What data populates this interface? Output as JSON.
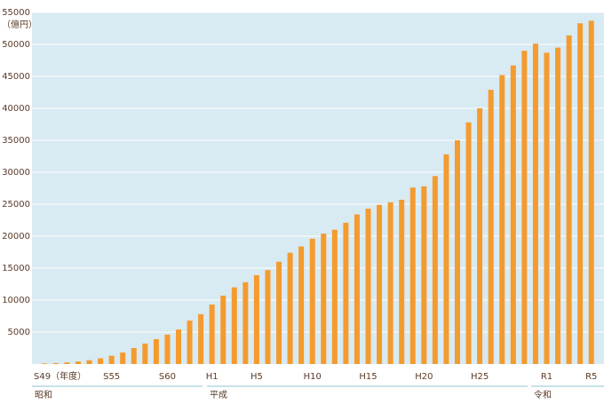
{
  "chart_data": {
    "type": "bar",
    "unit_label": "（億円）",
    "categories": [
      "S49（年度）",
      null,
      null,
      null,
      null,
      null,
      "S55",
      null,
      null,
      null,
      null,
      "S60",
      null,
      null,
      null,
      "H1",
      null,
      null,
      null,
      "H5",
      null,
      null,
      null,
      null,
      "H10",
      null,
      null,
      null,
      null,
      "H15",
      null,
      null,
      null,
      null,
      "H20",
      null,
      null,
      null,
      null,
      "H25",
      null,
      null,
      null,
      null,
      null,
      "R1",
      null,
      null,
      null,
      "R5"
    ],
    "values": [
      100,
      150,
      250,
      400,
      600,
      900,
      1300,
      1800,
      2500,
      3200,
      3900,
      4600,
      5400,
      6800,
      7800,
      9300,
      10700,
      12000,
      12800,
      13900,
      14700,
      16000,
      17400,
      18400,
      19600,
      20400,
      21000,
      22100,
      23400,
      24300,
      24900,
      25300,
      25700,
      27600,
      27800,
      29400,
      32800,
      35000,
      37800,
      40000,
      42900,
      45200,
      46700,
      49000,
      50100,
      48700,
      49500,
      51400,
      53300,
      53700
    ],
    "color": "#f49b2f",
    "ylim": [
      0,
      55000
    ],
    "yticks": [
      5000,
      10000,
      15000,
      20000,
      25000,
      30000,
      35000,
      40000,
      45000,
      50000,
      55000
    ],
    "grid": true,
    "eras": [
      "昭和",
      "平成",
      "令和"
    ]
  }
}
